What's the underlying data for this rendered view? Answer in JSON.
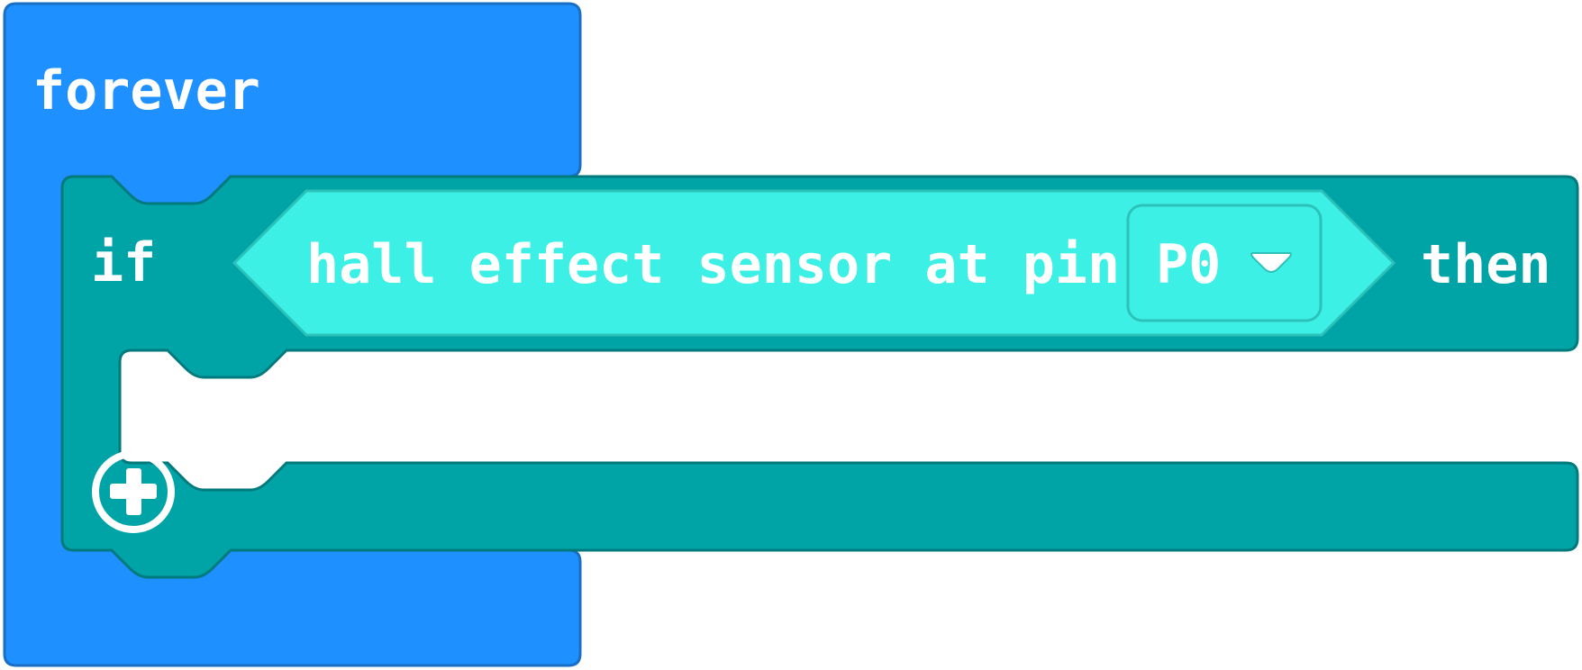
{
  "forever_block": {
    "label": "forever",
    "color": "#1E90FF",
    "border": "#1A6FC4"
  },
  "if_block": {
    "if_label": "if",
    "then_label": "then",
    "color": "#00A4A6",
    "border": "#007A7C"
  },
  "condition": {
    "label": "hall effect sensor at pin",
    "color": "#3CF0E6",
    "border": "#2CC2B9"
  },
  "pin_dropdown": {
    "selected": "P0",
    "icon": "chevron-down-icon"
  },
  "add_button": {
    "icon": "plus-circle-icon"
  }
}
